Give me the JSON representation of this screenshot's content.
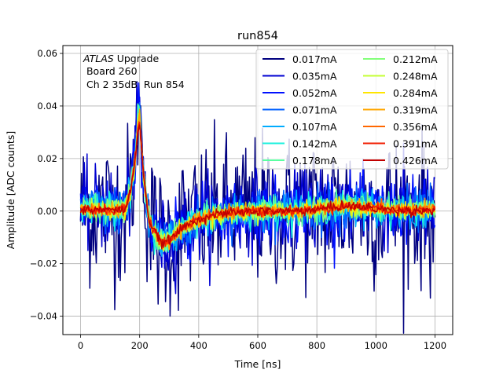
{
  "chart_data": {
    "type": "line",
    "title": "run854",
    "xlabel": "Time [ns]",
    "ylabel": "Amplitude [ADC counts]",
    "xlim": [
      -60,
      1260
    ],
    "ylim": [
      -0.047,
      0.063
    ],
    "xticks": [
      0,
      200,
      400,
      600,
      800,
      1000,
      1200
    ],
    "xtick_labels": [
      "0",
      "200",
      "400",
      "600",
      "800",
      "1000",
      "1200"
    ],
    "yticks": [
      -0.04,
      -0.02,
      0.0,
      0.02,
      0.04,
      0.06
    ],
    "ytick_labels": [
      "−0.04",
      "−0.02",
      "0.00",
      "0.02",
      "0.04",
      "0.06"
    ],
    "grid": true,
    "legend_placement": "top-right",
    "legend_columns": 2,
    "annotation": {
      "italic": "ATLAS",
      "line1_rest": " Upgrade",
      "line2": " Board 260",
      "line3": " Ch 2 35dB  Run 854"
    },
    "pulse_template": {
      "x": [
        0,
        150,
        170,
        185,
        193,
        199,
        205,
        215,
        230,
        250,
        265,
        280,
        290,
        300,
        320,
        350,
        400,
        450,
        500,
        550,
        600,
        700,
        800,
        850,
        900,
        950,
        1000,
        1050,
        1100,
        1200
      ],
      "y": [
        0.0005,
        0.0005,
        0.008,
        0.02,
        0.03,
        0.034,
        0.026,
        0.012,
        -0.003,
        -0.008,
        -0.011,
        -0.012,
        -0.0118,
        -0.011,
        -0.009,
        -0.006,
        -0.003,
        -0.0015,
        -0.0008,
        -0.0004,
        0.0,
        0.0,
        0.0005,
        0.0015,
        0.002,
        0.0015,
        0.001,
        0.0005,
        0.0003,
        0.0003
      ]
    },
    "series": [
      {
        "name": "0.017mA",
        "color": "#00007f",
        "noise": 0.0145
      },
      {
        "name": "0.035mA",
        "color": "#0000d1",
        "noise": 0.0078
      },
      {
        "name": "0.052mA",
        "color": "#0010ff",
        "noise": 0.0058
      },
      {
        "name": "0.071mA",
        "color": "#0060ff",
        "noise": 0.0044
      },
      {
        "name": "0.107mA",
        "color": "#00acff",
        "noise": 0.0034
      },
      {
        "name": "0.142mA",
        "color": "#19f0de",
        "noise": 0.0027
      },
      {
        "name": "0.178mA",
        "color": "#5affa1",
        "noise": 0.0023
      },
      {
        "name": "0.212mA",
        "color": "#83ff7a",
        "noise": 0.002
      },
      {
        "name": "0.248mA",
        "color": "#c4ff36",
        "noise": 0.0017
      },
      {
        "name": "0.284mA",
        "color": "#ffe500",
        "noise": 0.0015
      },
      {
        "name": "0.319mA",
        "color": "#ffa600",
        "noise": 0.0013
      },
      {
        "name": "0.356mA",
        "color": "#ff6700",
        "noise": 0.0011
      },
      {
        "name": "0.391mA",
        "color": "#f21d00",
        "noise": 0.001
      },
      {
        "name": "0.426mA",
        "color": "#c10000",
        "noise": 0.0009
      }
    ]
  }
}
